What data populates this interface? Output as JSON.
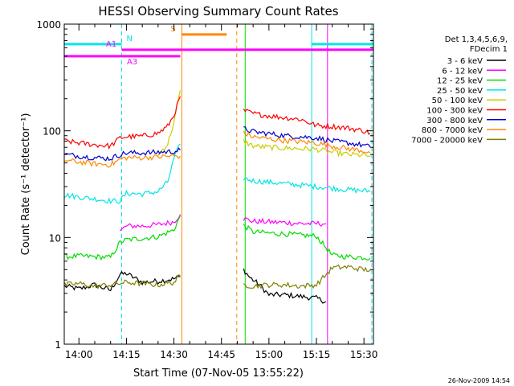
{
  "chart_data": {
    "type": "line",
    "title": "HESSI Observing Summary Count Rates",
    "xlabel": "Start Time (07-Nov-05 13:55:22)",
    "ylabel": "Count Rate (s⁻¹ detector⁻¹)",
    "timestamp": "26-Nov-2009 14:54",
    "yscale": "log",
    "xlim": [
      "13:55:22",
      "15:33:00"
    ],
    "ylim": [
      1,
      1000
    ],
    "x_ticks": [
      "14:00",
      "14:15",
      "14:30",
      "14:45",
      "15:00",
      "15:15",
      "15:30"
    ],
    "y_ticks": [
      "1",
      "10",
      "100",
      "1000"
    ],
    "grid": false,
    "legend": {
      "placement": "right",
      "header": [
        "Det 1,3,4,5,6,9,",
        "FDecim 1"
      ]
    },
    "series": [
      {
        "name": "3 - 6 keV",
        "color": "#000000",
        "segments": [
          {
            "x": [
              "13:55:30",
              "14:00",
              "14:05",
              "14:10",
              "14:13",
              "14:15",
              "14:20",
              "14:25",
              "14:30",
              "14:32"
            ],
            "y": [
              3.5,
              3.3,
              3.6,
              3.2,
              4.5,
              4.6,
              3.8,
              3.9,
              4.1,
              4.3
            ]
          },
          {
            "x": [
              "14:52",
              "14:54",
              "14:57",
              "15:00",
              "15:05",
              "15:10",
              "15:15",
              "15:18"
            ],
            "y": [
              5.0,
              4.2,
              3.6,
              2.9,
              2.9,
              2.8,
              2.7,
              2.5
            ]
          }
        ]
      },
      {
        "name": "6 - 12 keV",
        "color": "#ff00ff",
        "segments": [
          {
            "x": [
              "14:13",
              "14:15",
              "14:20",
              "14:25",
              "14:30",
              "14:32"
            ],
            "y": [
              11.5,
              12.8,
              12.8,
              13.2,
              14.0,
              16.5
            ]
          },
          {
            "x": [
              "14:52",
              "14:55",
              "15:00",
              "15:05",
              "15:10",
              "15:15",
              "15:18"
            ],
            "y": [
              15.0,
              14.2,
              14.0,
              13.8,
              13.5,
              13.5,
              13.5
            ]
          }
        ]
      },
      {
        "name": "12 - 25 keV",
        "color": "#00dd00",
        "segments": [
          {
            "x": [
              "13:55:30",
              "14:00",
              "14:05",
              "14:10",
              "14:13",
              "14:15",
              "14:20",
              "14:25",
              "14:30",
              "14:32"
            ],
            "y": [
              6.6,
              6.7,
              6.6,
              6.5,
              9.0,
              9.5,
              9.8,
              10.2,
              11.8,
              16.0
            ]
          },
          {
            "x": [
              "14:52",
              "14:55",
              "15:00",
              "15:05",
              "15:10",
              "15:15",
              "15:20",
              "15:25",
              "15:30",
              "15:32"
            ],
            "y": [
              13.0,
              11.3,
              11.0,
              10.8,
              10.5,
              10.3,
              6.8,
              6.6,
              6.5,
              6.4
            ]
          }
        ]
      },
      {
        "name": "25 - 50 keV",
        "color": "#00e5e5",
        "segments": [
          {
            "x": [
              "13:55:30",
              "14:00",
              "14:05",
              "14:10",
              "14:13",
              "14:15",
              "14:20",
              "14:25",
              "14:28",
              "14:30",
              "14:32"
            ],
            "y": [
              25,
              24,
              23,
              22,
              22,
              26,
              25.5,
              27,
              33,
              55,
              75
            ]
          },
          {
            "x": [
              "14:52",
              "14:55",
              "15:00",
              "15:05",
              "15:10",
              "15:15",
              "15:20",
              "15:25",
              "15:30",
              "15:32"
            ],
            "y": [
              36,
              34,
              33,
              32,
              31,
              30,
              29,
              28,
              27.5,
              27
            ]
          }
        ]
      },
      {
        "name": "50 - 100 keV",
        "color": "#cccc00",
        "segments": [
          {
            "x": [
              "14:25",
              "14:28",
              "14:30",
              "14:32"
            ],
            "y": [
              60,
              75,
              120,
              240
            ]
          },
          {
            "x": [
              "14:52",
              "14:55",
              "15:00",
              "15:05",
              "15:10",
              "15:15",
              "15:20",
              "15:25",
              "15:30",
              "15:32"
            ],
            "y": [
              80,
              72,
              70,
              69,
              68,
              67,
              63,
              60,
              59,
              58
            ]
          }
        ]
      },
      {
        "name": "100 - 300 keV",
        "color": "#ff0000",
        "segments": [
          {
            "x": [
              "13:55:30",
              "14:00",
              "14:05",
              "14:10",
              "14:13",
              "14:15",
              "14:20",
              "14:25",
              "14:28",
              "14:30",
              "14:32"
            ],
            "y": [
              80,
              77,
              74,
              72,
              86,
              88,
              89,
              95,
              110,
              140,
              210
            ]
          },
          {
            "x": [
              "14:52",
              "14:55",
              "15:00",
              "15:05",
              "15:10",
              "15:15",
              "15:20",
              "15:25",
              "15:30",
              "15:32"
            ],
            "y": [
              155,
              145,
              138,
              133,
              128,
              112,
              110,
              106,
              100,
              95
            ]
          }
        ]
      },
      {
        "name": "300 - 800 keV",
        "color": "#0000cc",
        "segments": [
          {
            "x": [
              "13:55:30",
              "14:00",
              "14:05",
              "14:10",
              "14:13",
              "14:15",
              "14:20",
              "14:25",
              "14:30",
              "14:32"
            ],
            "y": [
              60,
              58,
              56,
              55,
              60,
              62,
              62,
              63,
              64,
              66
            ]
          },
          {
            "x": [
              "14:52",
              "14:55",
              "15:00",
              "15:05",
              "15:10",
              "15:15",
              "15:20",
              "15:25",
              "15:30",
              "15:32"
            ],
            "y": [
              105,
              98,
              94,
              90,
              88,
              86,
              80,
              77,
              73,
              70
            ]
          }
        ]
      },
      {
        "name": "800 - 7000 keV",
        "color": "#ff8800",
        "segments": [
          {
            "x": [
              "13:55:30",
              "14:00",
              "14:05",
              "14:10",
              "14:13",
              "14:15",
              "14:20",
              "14:25",
              "14:30",
              "14:32"
            ],
            "y": [
              53,
              51,
              49,
              48,
              54,
              56,
              56,
              57,
              58,
              58
            ]
          },
          {
            "x": [
              "14:52",
              "14:55",
              "15:00",
              "15:05",
              "15:10",
              "15:15",
              "15:20",
              "15:25",
              "15:30",
              "15:32"
            ],
            "y": [
              95,
              88,
              84,
              81,
              79,
              77,
              72,
              68,
              65,
              62
            ]
          }
        ]
      },
      {
        "name": "7000 - 20000 keV",
        "color": "#808000",
        "segments": [
          {
            "x": [
              "13:55:30",
              "14:00",
              "14:05",
              "14:10",
              "14:15",
              "14:20",
              "14:25",
              "14:30",
              "14:32"
            ],
            "y": [
              3.6,
              3.7,
              3.5,
              3.6,
              3.8,
              3.7,
              3.6,
              3.8,
              4.4
            ]
          },
          {
            "x": [
              "14:52",
              "14:55",
              "15:00",
              "15:05",
              "15:10",
              "15:15",
              "15:20",
              "15:25",
              "15:30",
              "15:32"
            ],
            "y": [
              3.6,
              3.5,
              3.6,
              3.6,
              3.5,
              3.6,
              5.2,
              5.3,
              5.0,
              5.0
            ]
          }
        ]
      }
    ],
    "bands": [
      {
        "label": "N",
        "color": "#00e5e5",
        "level": 650,
        "intervals": [
          [
            "13:55:22",
            "14:13:30"
          ],
          [
            "15:13:30",
            "15:33:00"
          ]
        ]
      },
      {
        "label": "S",
        "color": "#ff8800",
        "level": 800,
        "intervals": [
          [
            "14:32:30",
            "14:46:40"
          ]
        ]
      },
      {
        "label": "A1",
        "color": "#ff00ff",
        "level": 575,
        "intervals": [
          [
            "14:13:30",
            "15:33:00"
          ]
        ]
      },
      {
        "label": "A3",
        "color": "#ff00ff",
        "level": 500,
        "intervals": [
          [
            "13:55:22",
            "14:32:00"
          ]
        ]
      }
    ],
    "markers": [
      {
        "x": "13:55:22",
        "color": "#00e5e5",
        "style": "solid"
      },
      {
        "x": "14:13:30",
        "color": "#00e5e5",
        "style": "dashed"
      },
      {
        "x": "14:32:30",
        "color": "#ff8800",
        "style": "solid"
      },
      {
        "x": "14:49:50",
        "color": "#ff8800",
        "style": "dashed"
      },
      {
        "x": "14:52:30",
        "color": "#00dd00",
        "style": "solid"
      },
      {
        "x": "15:13:30",
        "color": "#00e5e5",
        "style": "solid"
      },
      {
        "x": "15:18:30",
        "color": "#ff00ff",
        "style": "solid"
      },
      {
        "x": "15:32:30",
        "color": "#00e5e5",
        "style": "dashed"
      }
    ]
  }
}
